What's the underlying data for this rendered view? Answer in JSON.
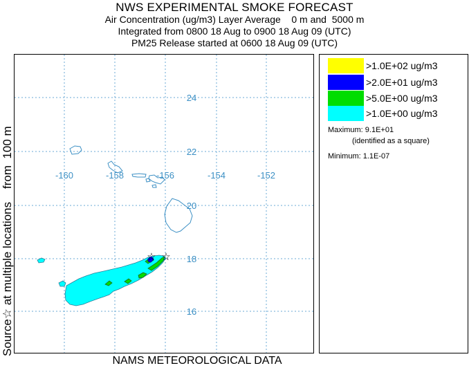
{
  "header": {
    "title": "NWS EXPERIMENTAL SMOKE FORECAST",
    "line1": "Air Concentration (ug/m3) Layer Average    0 m and  5000 m",
    "line2": "Integrated from 0800 18 Aug to 0900 18 Aug 09 (UTC)",
    "line3": "PM25 Release started at 0600 18 Aug 09 (UTC)"
  },
  "side_label": "Source☆ at multiple locations    from  100 m",
  "footer": "NAMS METEOROLOGICAL DATA",
  "map": {
    "lon_labels": [
      "-160",
      "-158",
      "-156",
      "-154",
      "-152"
    ],
    "lat_labels": [
      "24",
      "22",
      "20",
      "18",
      "16"
    ],
    "grid_color": "#6aaad4",
    "coast_color": "#3b8fc4"
  },
  "legend": {
    "items": [
      {
        "color": "#ffff00",
        "label": ">1.0E+02 ug/m3"
      },
      {
        "color": "#0000ff",
        "label": ">2.0E+01 ug/m3"
      },
      {
        "color": "#00dd00",
        "label": ">5.0E+00 ug/m3"
      },
      {
        "color": "#00ffff",
        "label": ">1.0E+00 ug/m3"
      }
    ],
    "maximum": "Maximum: 9.1E+01",
    "maximum_note": "(identified as a square)",
    "minimum": "Minimum: 1.1E-07"
  }
}
